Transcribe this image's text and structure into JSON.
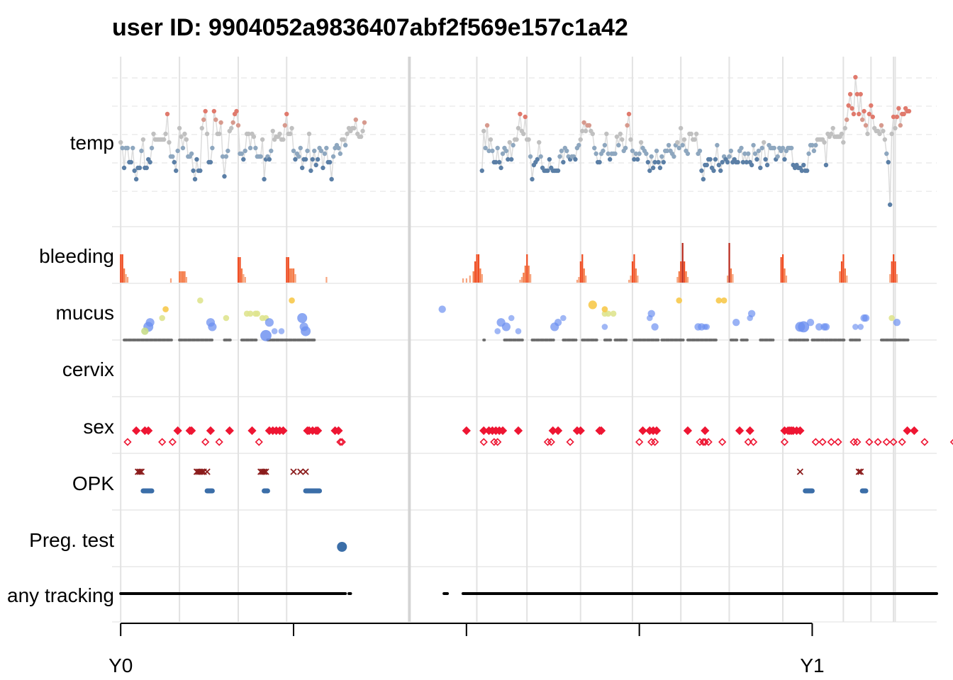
{
  "chart_data": {
    "type": "scatter",
    "title": "user ID:  9904052a9836407abf2f569e157c1a42",
    "row_labels": [
      "temp",
      "bleeding",
      "mucus",
      "cervix",
      "sex",
      "OPK",
      "Preg. test",
      "any tracking"
    ],
    "x_axis": {
      "unit": "days",
      "range": [
        -5,
        472
      ],
      "ticks": [
        0,
        100,
        200,
        300,
        400
      ],
      "tick_labels": {
        "0": "Y0",
        "400": "Y1"
      }
    },
    "cycle_starts": [
      0,
      34,
      68,
      96,
      206,
      235,
      266,
      296,
      324,
      352,
      383,
      418,
      434,
      447,
      448
    ],
    "gap_marker": 167,
    "temp": {
      "y_range": [
        -4,
        4
      ],
      "segments": [
        {
          "start": 0,
          "values": [
            0.0,
            -0.2,
            -0.9,
            -0.2,
            -0.2,
            -0.7,
            -0.7,
            -0.2,
            -1.0,
            -1.3,
            -0.9,
            -0.9,
            -0.3,
            0.1,
            -0.9,
            -0.9,
            -0.6,
            -0.7,
            -0.2,
            0.3,
            0.1,
            0.1,
            0.1,
            0.1,
            0.1,
            0.1,
            0.3,
            1.0,
            0.0,
            -0.5,
            -0.5,
            -0.7,
            -1.0,
            -0.3,
            0.5,
            0.2,
            -0.2,
            0.3,
            0.1,
            -0.5,
            -0.5,
            -0.4,
            -1.0,
            -1.3,
            -0.6,
            -1.0,
            -1.0,
            0.5,
            0.8,
            1.1,
            0.3,
            -0.7,
            -0.7,
            -0.2,
            1.1,
            0.8,
            0.3,
            0.3,
            0.7,
            -0.5,
            -1.2,
            -0.5,
            -0.3,
            0.4,
            0.5,
            0.7,
            1.0,
            1.1,
            0.6,
            -0.4,
            -0.4,
            -0.6,
            -0.3,
            0.3,
            0.3,
            -0.2,
            0.3,
            0.2,
            -0.2,
            -0.5,
            -0.5,
            -0.5,
            0.1,
            -1.3,
            -0.6,
            -0.5,
            -0.6,
            -0.3,
            0.4,
            0.1,
            0.2,
            0.2,
            0.3,
            0.1,
            0.1,
            0.6,
            1.0,
            0.3,
            0.3,
            0.5,
            -0.3,
            -0.6,
            -0.4,
            -0.5,
            -0.2,
            -0.9,
            -0.6,
            -0.6,
            -0.3,
            0.3,
            -1.0,
            -0.6,
            -0.3,
            -0.8,
            -0.6,
            -0.2,
            -0.3,
            -0.9,
            -0.4,
            -0.2,
            -0.7,
            -0.7,
            -1.3,
            -0.5,
            -0.2,
            -0.1,
            -0.2,
            -0.4,
            0.1,
            0.1,
            -0.1,
            0.3,
            0.5,
            0.4,
            0.5,
            0.5,
            0.8,
            0.3,
            0.2,
            0.2,
            0.4,
            0.7
          ]
        },
        {
          "start": 209,
          "values": [
            -1.0,
            0.4,
            -0.2,
            0.6,
            -0.3,
            0.1,
            -0.3,
            -0.7,
            -0.7,
            -0.2,
            -0.7,
            -0.9,
            -0.4,
            -0.2,
            -0.3,
            -0.6,
            0.0,
            -0.6,
            -0.1,
            0.1,
            0.1,
            0.5,
            1.0,
            0.4,
            0.3,
            0.9,
            0.1,
            0.1,
            -0.5,
            -1.3,
            -0.8,
            -0.7,
            -0.6,
            0.0,
            -0.5,
            -0.9,
            -1.0,
            -1.0,
            -1.0,
            -0.6,
            -0.9,
            -1.0,
            -1.0,
            -1.0,
            -1.0,
            -0.5,
            -0.3,
            -0.7,
            -0.2,
            -0.3,
            -0.5,
            -0.6,
            -0.5,
            -0.5,
            -0.6,
            -0.2,
            -0.1,
            0.1,
            0.4,
            0.7,
            0.4,
            0.6,
            0.6,
            0.4,
            0.3,
            -0.2,
            -0.4,
            -0.7,
            -0.7,
            -0.4,
            -0.3,
            -0.1,
            0.3,
            -0.4,
            -0.6,
            -0.4,
            -0.4,
            -0.4,
            0.2,
            -0.1,
            0.3,
            0.1,
            -0.3,
            -0.2,
            0.6,
            1.0,
            0.1,
            -0.3,
            -0.6,
            -0.4,
            -0.6,
            -0.4,
            0.0,
            -0.2,
            -0.3,
            -0.4,
            -0.7,
            -1.0,
            -0.5,
            -0.9,
            -0.7,
            -0.3,
            -0.7,
            -0.9,
            -0.5,
            -0.7,
            -0.3,
            -0.3,
            -0.1,
            -0.3,
            -0.4,
            -0.5,
            -0.1,
            0.0,
            -0.2,
            0.5,
            -0.1,
            0.1,
            -0.3,
            -0.4,
            0.3,
            0.3,
            0.1,
            0.1,
            0.3,
            -0.4,
            -0.3,
            -1.0,
            -1.3,
            -0.8,
            -0.8,
            -0.6,
            -0.6,
            -0.9,
            -1.0,
            -0.6,
            -0.1,
            -0.8,
            -1.0,
            -0.7,
            -0.5,
            -0.6,
            -0.7,
            -0.5,
            -0.3,
            -0.7,
            -0.6,
            -0.7,
            -0.7,
            -0.3,
            -0.2,
            -0.7,
            -0.4,
            -0.7,
            -0.4,
            -0.7,
            -0.8,
            -0.1,
            -0.4,
            -0.6,
            -0.3,
            -0.9,
            -0.2,
            0.0,
            -0.6,
            -0.8,
            -0.1,
            -0.2,
            -0.2,
            -0.2,
            -0.6,
            -0.5,
            -0.2,
            -0.3,
            -0.2,
            -0.6,
            -0.3,
            -0.2,
            -0.2,
            -0.2,
            -0.8,
            -0.9,
            -0.8,
            -0.9,
            -0.9,
            -1.0,
            -0.8,
            -1.0,
            -1.0,
            -0.4,
            -0.1,
            -0.1,
            -0.3,
            -0.1,
            0.1,
            0.1,
            0.1,
            0.1,
            0.0,
            -0.8,
            0.3,
            0.2,
            0.3,
            0.5,
            0.2,
            0.2,
            0.2,
            0.2,
            0.3,
            0.0,
            0.5,
            0.8,
            1.3,
            1.7,
            1.2,
            1.0,
            2.3,
            1.7,
            1.0,
            1.7,
            0.8,
            1.1,
            0.6,
            0.3,
            1.0,
            1.3,
            0.9,
            0.5,
            0.4,
            0.4,
            0.3,
            0.6,
            0.4,
            0.1,
            -0.4,
            -0.7,
            -2.2,
            0.3,
            0.9,
            0.5,
            0.9,
            1.2,
            0.6,
            1.0,
            1.0,
            1.2,
            1.1,
            1.1
          ]
        }
      ]
    },
    "bleeding": [
      [
        0,
        2
      ],
      [
        1,
        2
      ],
      [
        2,
        1
      ],
      [
        3,
        0.6
      ],
      [
        4,
        0.4
      ],
      [
        29,
        0.3
      ],
      [
        34,
        0.8
      ],
      [
        35,
        0.8
      ],
      [
        36,
        0.8
      ],
      [
        37,
        0.8
      ],
      [
        38,
        0.4
      ],
      [
        68,
        1.8
      ],
      [
        69,
        1.8
      ],
      [
        70,
        1.0
      ],
      [
        71,
        0.6
      ],
      [
        72,
        0.4
      ],
      [
        96,
        1.8
      ],
      [
        97,
        1.8
      ],
      [
        98,
        1.0
      ],
      [
        99,
        1.0
      ],
      [
        100,
        1.0
      ],
      [
        101,
        0.6
      ],
      [
        119,
        0.4
      ],
      [
        198,
        0.3
      ],
      [
        200,
        0.3
      ],
      [
        202,
        0.5
      ],
      [
        204,
        0.8
      ],
      [
        205,
        1.5
      ],
      [
        206,
        2.0
      ],
      [
        207,
        2.0
      ],
      [
        208,
        1.0
      ],
      [
        209,
        0.6
      ],
      [
        231,
        0.2
      ],
      [
        232,
        0.4
      ],
      [
        233,
        0.7
      ],
      [
        234,
        1.2
      ],
      [
        235,
        2.0
      ],
      [
        236,
        1.2
      ],
      [
        237,
        0.6
      ],
      [
        264,
        0.2
      ],
      [
        265,
        0.4
      ],
      [
        266,
        1.5
      ],
      [
        267,
        2.0
      ],
      [
        268,
        1.0
      ],
      [
        269,
        0.5
      ],
      [
        294,
        0.2
      ],
      [
        295,
        0.5
      ],
      [
        296,
        1.5
      ],
      [
        297,
        2.0
      ],
      [
        298,
        1.0
      ],
      [
        299,
        0.5
      ],
      [
        322,
        0.4
      ],
      [
        323,
        0.8
      ],
      [
        324,
        1.5
      ],
      [
        325,
        2.8
      ],
      [
        326,
        1.5
      ],
      [
        327,
        0.8
      ],
      [
        328,
        0.4
      ],
      [
        351,
        0.5
      ],
      [
        352,
        2.8
      ],
      [
        353,
        1.0
      ],
      [
        354,
        0.6
      ],
      [
        382,
        1.8
      ],
      [
        383,
        2.0
      ],
      [
        384,
        1.0
      ],
      [
        385,
        0.5
      ],
      [
        416,
        0.8
      ],
      [
        417,
        1.5
      ],
      [
        418,
        2.0
      ],
      [
        419,
        1.0
      ],
      [
        420,
        0.5
      ],
      [
        445,
        0.6
      ],
      [
        446,
        1.5
      ],
      [
        447,
        2.0
      ],
      [
        448,
        1.5
      ],
      [
        449,
        0.6
      ]
    ],
    "mucus": [
      [
        17,
        0.4,
        0.4,
        1
      ],
      [
        16,
        0.3,
        0.5,
        1
      ],
      [
        14,
        0.2,
        0.3,
        2
      ],
      [
        24,
        0.5,
        0.2,
        3
      ],
      [
        26,
        0.7,
        0.2,
        4
      ],
      [
        46,
        0.9,
        0.2,
        3
      ],
      [
        52,
        0.4,
        0.4,
        1
      ],
      [
        53,
        0.3,
        0.4,
        1
      ],
      [
        61,
        0.5,
        0.2,
        3
      ],
      [
        73,
        0.6,
        0.2,
        3
      ],
      [
        75,
        0.6,
        0.2,
        3
      ],
      [
        78,
        0.6,
        0.2,
        3
      ],
      [
        79,
        0.6,
        0.2,
        3
      ],
      [
        82,
        0.5,
        0.2,
        3
      ],
      [
        84,
        0.5,
        0.2,
        3
      ],
      [
        84,
        0.1,
        0.6,
        1
      ],
      [
        86,
        0.4,
        0.4,
        1
      ],
      [
        89,
        0.2,
        0.2,
        1
      ],
      [
        93,
        0.2,
        0.2,
        1
      ],
      [
        99,
        0.9,
        0.2,
        4
      ],
      [
        105,
        0.5,
        0.5,
        1
      ],
      [
        106,
        0.3,
        0.4,
        1
      ],
      [
        107,
        0.2,
        0.5,
        1
      ],
      [
        186,
        0.7,
        0.3,
        1
      ],
      [
        220,
        0.4,
        0.4,
        1
      ],
      [
        223,
        0.3,
        0.4,
        1
      ],
      [
        218,
        0.2,
        0.2,
        1
      ],
      [
        226,
        0.5,
        0.2,
        1
      ],
      [
        230,
        0.2,
        0.2,
        1
      ],
      [
        251,
        0.3,
        0.4,
        1
      ],
      [
        253,
        0.4,
        0.3,
        1
      ],
      [
        256,
        0.5,
        0.2,
        1
      ],
      [
        280,
        0.3,
        0.2,
        1
      ],
      [
        280,
        0.6,
        0.2,
        3
      ],
      [
        273,
        0.8,
        0.4,
        4
      ],
      [
        282,
        0.6,
        0.2,
        3
      ],
      [
        285,
        0.6,
        0.2,
        3
      ],
      [
        280,
        0.7,
        0.2,
        4
      ],
      [
        307,
        0.6,
        0.3,
        1
      ],
      [
        306,
        0.5,
        0.2,
        1
      ],
      [
        309,
        0.3,
        0.3,
        1
      ],
      [
        323,
        0.9,
        0.2,
        4
      ],
      [
        334,
        0.3,
        0.3,
        1
      ],
      [
        336,
        0.3,
        0.3,
        1
      ],
      [
        338,
        0.3,
        0.2,
        1
      ],
      [
        339,
        0.3,
        0.2,
        1
      ],
      [
        346,
        0.9,
        0.2,
        4
      ],
      [
        349,
        0.9,
        0.2,
        4
      ],
      [
        356,
        0.4,
        0.3,
        1
      ],
      [
        365,
        0.6,
        0.3,
        1
      ],
      [
        364,
        0.5,
        0.2,
        1
      ],
      [
        393,
        0.3,
        0.5,
        1
      ],
      [
        395,
        0.3,
        0.6,
        1
      ],
      [
        399,
        0.4,
        0.3,
        1
      ],
      [
        404,
        0.3,
        0.3,
        1
      ],
      [
        407,
        0.3,
        0.3,
        1
      ],
      [
        408,
        0.3,
        0.3,
        1
      ],
      [
        425,
        0.3,
        0.2,
        1
      ],
      [
        428,
        0.3,
        0.2,
        1
      ],
      [
        430,
        0.5,
        0.3,
        1
      ],
      [
        431,
        0.5,
        0.3,
        1
      ],
      [
        446,
        0.5,
        0.2,
        3
      ],
      [
        449,
        0.4,
        0.3,
        1
      ]
    ],
    "mucus_none": [
      [
        2,
        29
      ],
      [
        34,
        53
      ],
      [
        60,
        63
      ],
      [
        70,
        78
      ],
      [
        85,
        105
      ],
      [
        103,
        112
      ],
      [
        210,
        210
      ],
      [
        222,
        232
      ],
      [
        238,
        250
      ],
      [
        256,
        263
      ],
      [
        267,
        275
      ],
      [
        280,
        283
      ],
      [
        286,
        292
      ],
      [
        297,
        311
      ],
      [
        313,
        325
      ],
      [
        328,
        344
      ],
      [
        353,
        356
      ],
      [
        359,
        362
      ],
      [
        370,
        377
      ],
      [
        387,
        397
      ],
      [
        400,
        410
      ],
      [
        410,
        418
      ],
      [
        422,
        427
      ],
      [
        440,
        455
      ]
    ],
    "sex": {
      "unprotected": [
        9,
        14,
        16,
        33,
        40,
        41,
        52,
        63,
        76,
        86,
        88,
        90,
        92,
        94,
        108,
        109,
        111,
        113,
        114,
        124,
        126,
        200,
        210,
        213,
        215,
        217,
        219,
        221,
        230,
        250,
        253,
        264,
        266,
        277,
        278,
        302,
        306,
        308,
        310,
        328,
        338,
        358,
        364,
        384,
        386,
        387,
        388,
        389,
        391,
        393,
        455,
        459
      ],
      "protected": [
        4,
        24,
        30,
        49,
        57,
        80,
        127,
        128,
        210,
        216,
        218,
        247,
        249,
        260,
        300,
        307,
        309,
        335,
        337,
        338,
        340,
        348,
        363,
        366,
        384,
        402,
        406,
        411,
        415,
        424,
        426,
        433,
        438,
        443,
        447,
        452,
        465,
        482
      ]
    },
    "opk": {
      "positive": [
        10,
        11,
        12,
        44,
        45,
        46,
        47,
        48,
        50,
        81,
        82,
        83,
        84,
        100,
        104,
        107,
        393,
        427,
        428
      ],
      "neg_ranges": [
        [
          13,
          18
        ],
        [
          50,
          53
        ],
        [
          83,
          85
        ],
        [
          107,
          115
        ],
        [
          396,
          400
        ],
        [
          429,
          431
        ]
      ]
    },
    "preg_test": [
      [
        128
      ]
    ],
    "any_tracking": [
      [
        0,
        130
      ],
      [
        132,
        133
      ],
      [
        187,
        189
      ],
      [
        198,
        472
      ]
    ]
  }
}
